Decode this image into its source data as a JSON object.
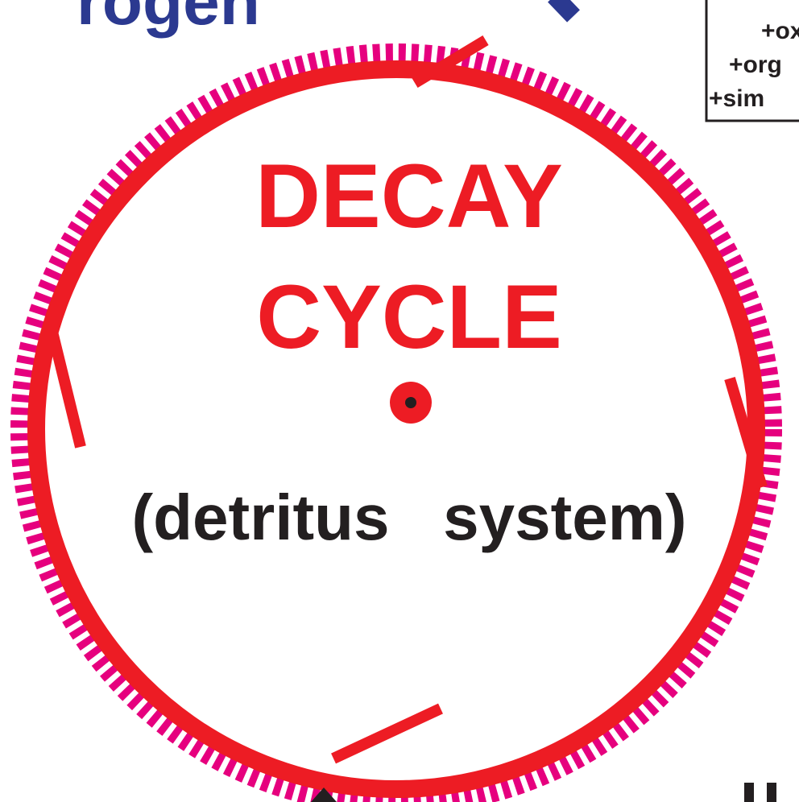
{
  "top_left_label": "rogen",
  "box": {
    "lines": [
      "+ox",
      "+org",
      "+sim"
    ]
  },
  "center": {
    "title_line1": "DECAY",
    "title_line2": "CYCLE",
    "subtitle": "(detritus   system)"
  }
}
